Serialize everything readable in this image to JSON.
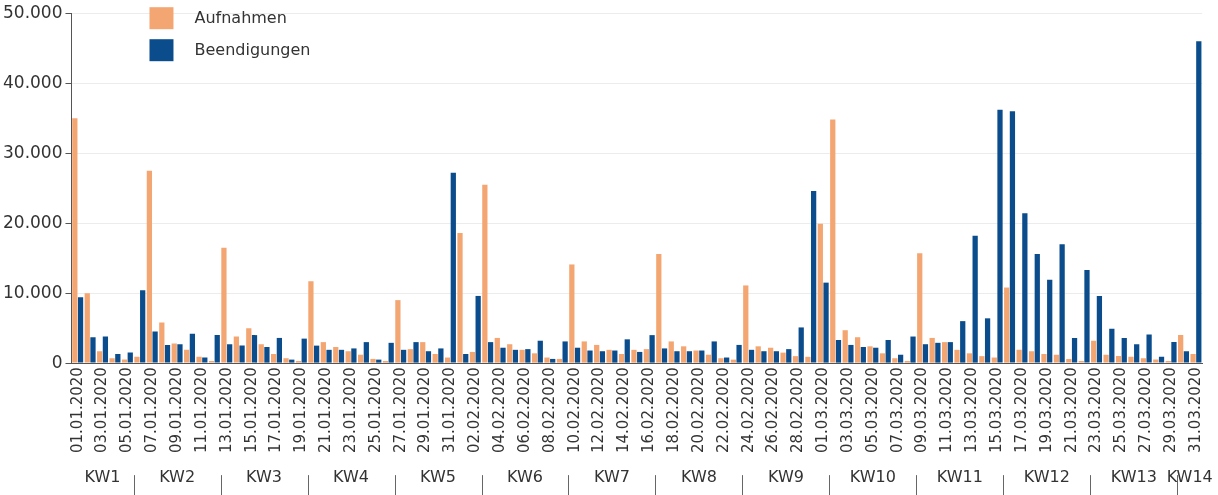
{
  "chart_data": {
    "type": "bar",
    "categories": [
      "01.01.2020",
      null,
      "03.01.2020",
      null,
      "05.01.2020",
      null,
      "07.01.2020",
      null,
      "09.01.2020",
      null,
      "11.01.2020",
      null,
      "13.01.2020",
      null,
      "15.01.2020",
      null,
      "17.01.2020",
      null,
      "19.01.2020",
      null,
      "21.01.2020",
      null,
      "23.01.2020",
      null,
      "25.01.2020",
      null,
      "27.01.2020",
      null,
      "29.01.2020",
      null,
      "31.01.2020",
      null,
      "02.02.2020",
      null,
      "04.02.2020",
      null,
      "06.02.2020",
      null,
      "08.02.2020",
      null,
      "10.02.2020",
      null,
      "12.02.2020",
      null,
      "14.02.2020",
      null,
      "16.02.2020",
      null,
      "18.02.2020",
      null,
      "20.02.2020",
      null,
      "22.02.2020",
      null,
      "24.02.2020",
      null,
      "26.02.2020",
      null,
      "28.02.2020",
      null,
      "01.03.2020",
      null,
      "03.03.2020",
      null,
      "05.03.2020",
      null,
      "07.03.2020",
      null,
      "09.03.2020",
      null,
      "11.03.2020",
      null,
      "13.03.2020",
      null,
      "15.03.2020",
      null,
      "17.03.2020",
      null,
      "19.03.2020",
      null,
      "21.03.2020",
      null,
      "23.03.2020",
      null,
      "25.03.2020",
      null,
      "27.03.2020",
      null,
      "29.03.2020",
      null,
      "31.03.2020"
    ],
    "series": [
      {
        "name": "Aufnahmen",
        "color": "#f4a672",
        "values": [
          35000,
          10000,
          1700,
          700,
          500,
          900,
          27500,
          5800,
          2800,
          1900,
          900,
          300,
          16500,
          3800,
          5000,
          2700,
          1300,
          700,
          300,
          11700,
          3000,
          2300,
          1700,
          1200,
          600,
          300,
          9000,
          2000,
          3000,
          1300,
          800,
          18600,
          1600,
          25500,
          3600,
          2700,
          1900,
          1400,
          800,
          600,
          14100,
          3100,
          2600,
          1900,
          1300,
          1900,
          2000,
          15600,
          3100,
          2400,
          1800,
          1200,
          700,
          500,
          11100,
          2400,
          2200,
          1500,
          1000,
          900,
          19900,
          34800,
          4700,
          3700,
          2400,
          1400,
          700,
          300,
          15700,
          3600,
          3000,
          1900,
          1400,
          1000,
          800,
          10800,
          1900,
          1700,
          1300,
          1200,
          600,
          300,
          3200,
          1200,
          1000,
          900,
          700,
          500,
          300,
          4000,
          1300
        ]
      },
      {
        "name": "Beendigungen",
        "color": "#0b4d8c",
        "values": [
          9400,
          3700,
          3800,
          1300,
          1500,
          10400,
          4500,
          2600,
          2700,
          4200,
          800,
          4000,
          2700,
          2500,
          4000,
          2300,
          3600,
          500,
          3500,
          2500,
          1900,
          1900,
          2100,
          3000,
          500,
          2900,
          1900,
          3000,
          1700,
          2100,
          27200,
          1300,
          9600,
          3000,
          2200,
          1900,
          2000,
          3200,
          600,
          3100,
          2200,
          1800,
          1700,
          1800,
          3400,
          1600,
          4000,
          2100,
          1700,
          1700,
          1800,
          3100,
          800,
          2600,
          1900,
          1700,
          1700,
          2000,
          5100,
          24600,
          11500,
          3300,
          2600,
          2300,
          2200,
          3300,
          1200,
          3800,
          2700,
          2900,
          3000,
          6000,
          18200,
          6400,
          36200,
          36000,
          21400,
          15600,
          11900,
          17000,
          3600,
          13300,
          9600,
          4900,
          3600,
          2700,
          4100,
          900,
          3000,
          1700,
          46000
        ]
      }
    ],
    "ylim": [
      0,
      50000
    ],
    "yticks": [
      0,
      {
        "value": 10000,
        "label": "10.000"
      },
      {
        "value": 20000,
        "label": "20.000"
      },
      {
        "value": 30000,
        "label": "30.000"
      },
      {
        "value": 40000,
        "label": "40.000"
      },
      {
        "value": 50000,
        "label": "50.000"
      }
    ],
    "grid": "y",
    "legend": "top left",
    "annotations": [
      "KW1",
      "KW2",
      "KW3",
      "KW4",
      "KW5",
      "KW6",
      "KW7",
      "KW8",
      "KW9",
      "KW10",
      "KW11",
      "KW12",
      "KW13",
      "KW14"
    ]
  }
}
